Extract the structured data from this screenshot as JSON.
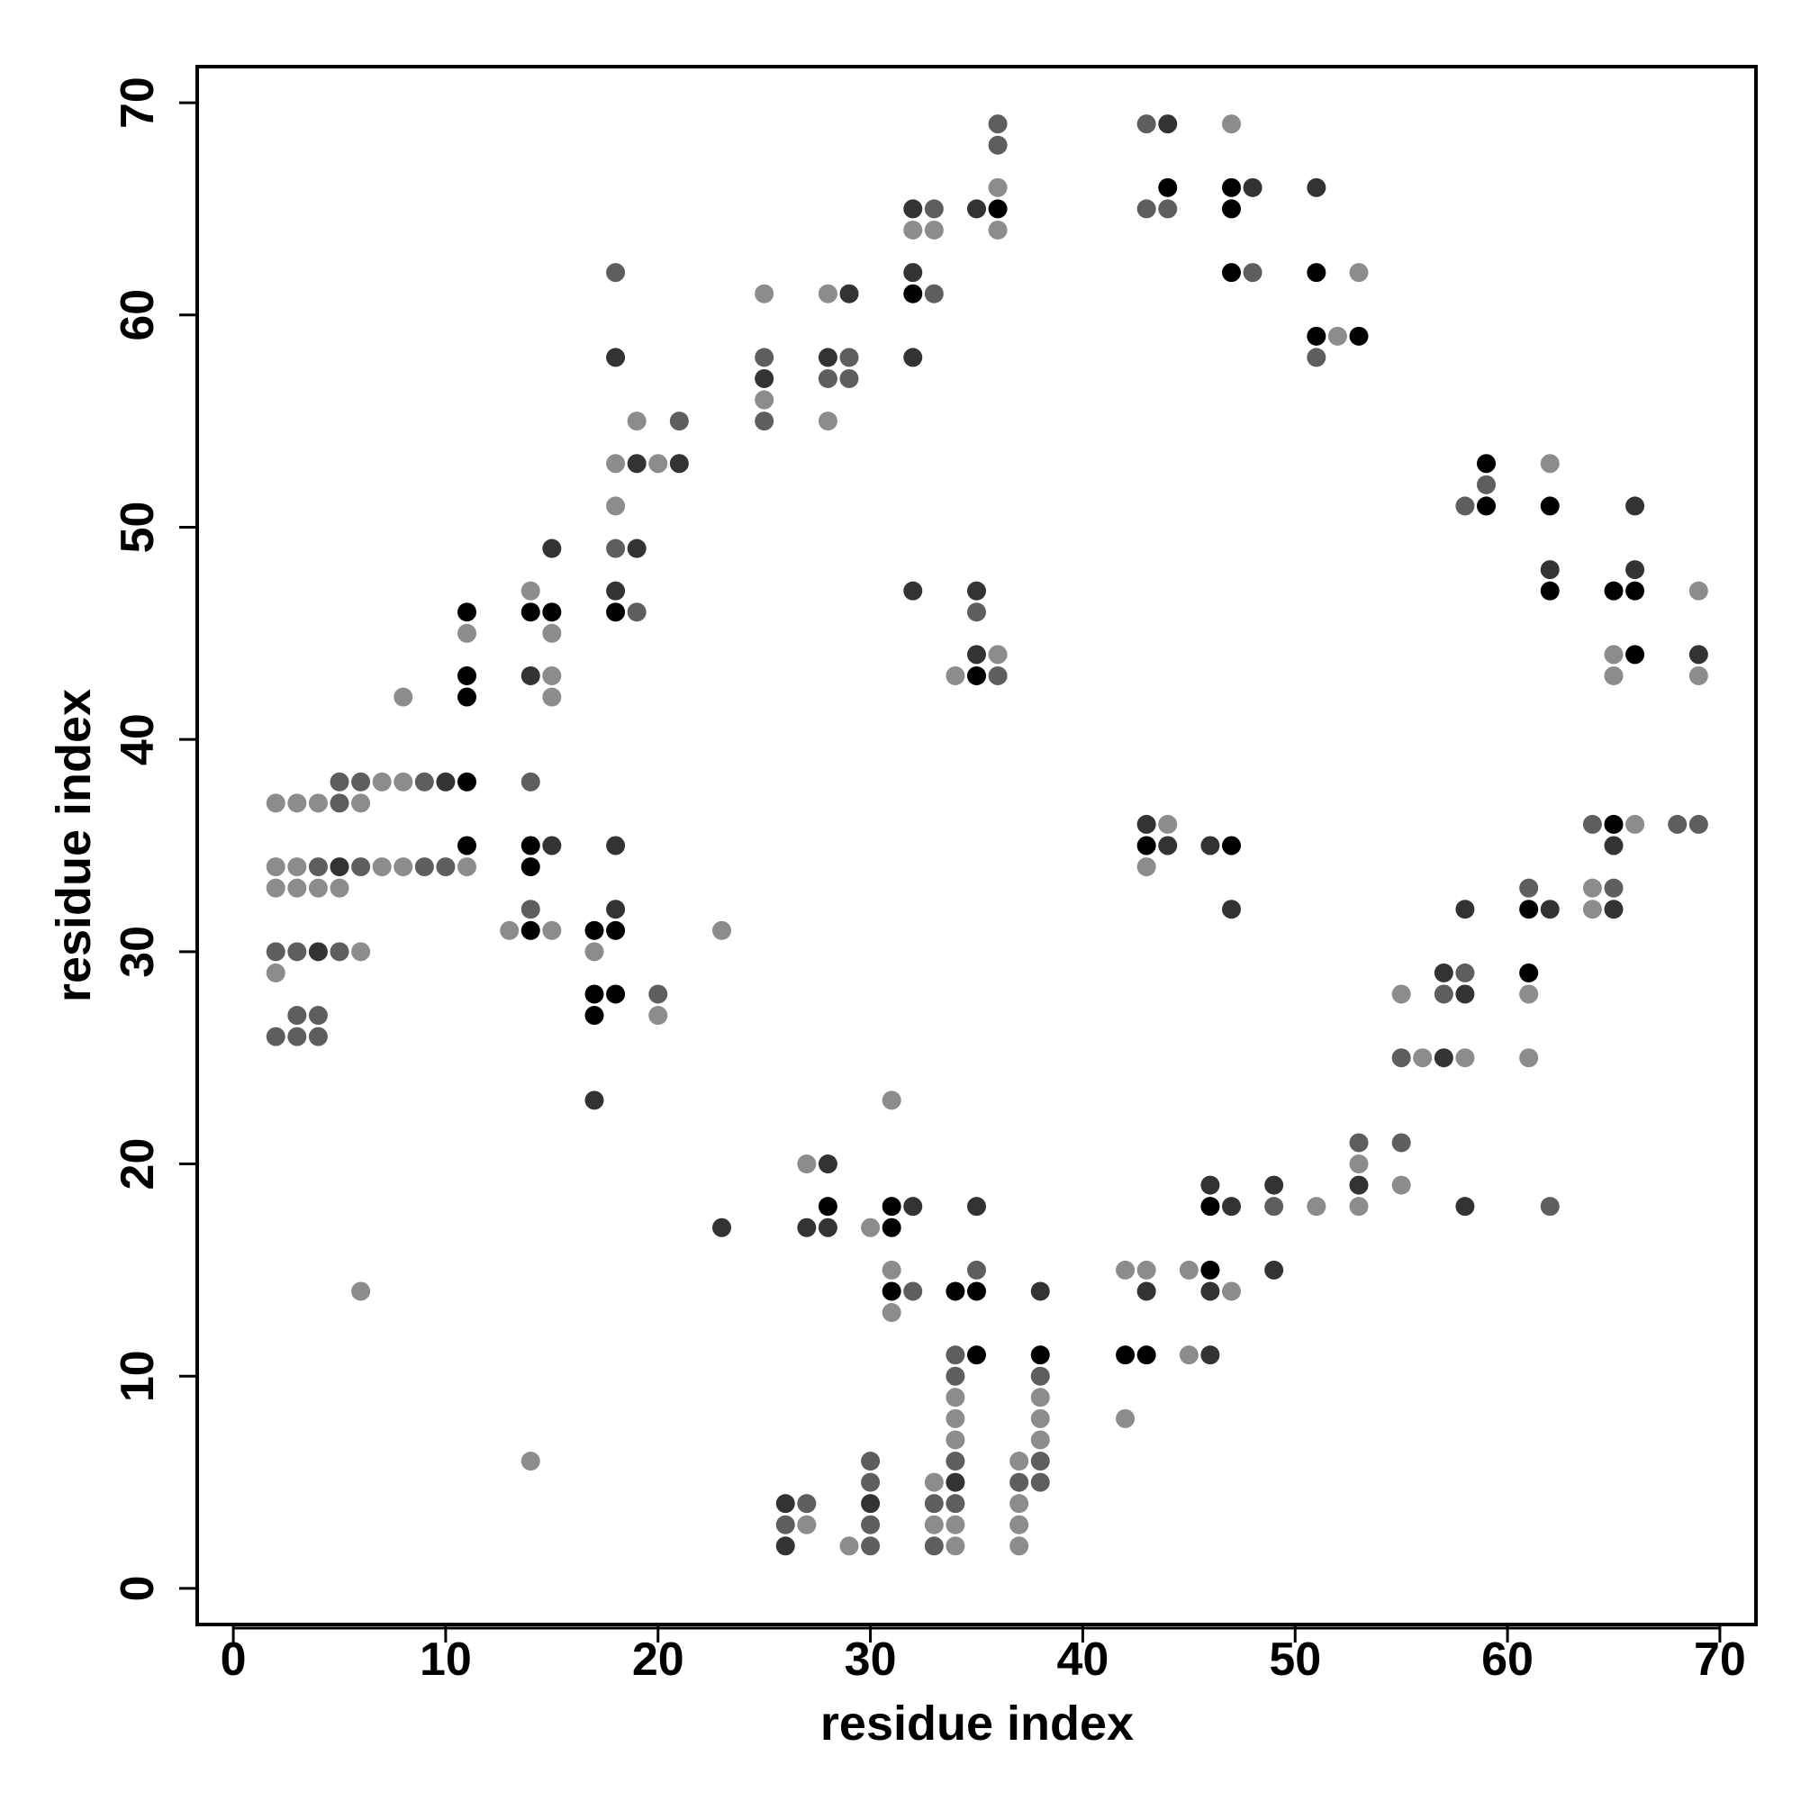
{
  "chart_data": {
    "type": "scatter",
    "xlabel": "residue index",
    "ylabel": "residue index",
    "xlim": [
      -1.7,
      71.7
    ],
    "ylim": [
      -1.7,
      71.7
    ],
    "xticks": [
      0,
      10,
      20,
      30,
      40,
      50,
      60,
      70
    ],
    "yticks": [
      0,
      10,
      20,
      30,
      40,
      50,
      60,
      70
    ],
    "series": [
      {
        "color": "#8c8c8c",
        "x": [
          2,
          2,
          2,
          2,
          3,
          3,
          3,
          4,
          4,
          5,
          6,
          6,
          6,
          7,
          7,
          8,
          8,
          8,
          11,
          11,
          13,
          14,
          14,
          15,
          15,
          15,
          15,
          17,
          18,
          18,
          19,
          20,
          20,
          23,
          25,
          25,
          27,
          27,
          28,
          28,
          29,
          30,
          31,
          31,
          31,
          32,
          33,
          33,
          33,
          34,
          34,
          34,
          34,
          34,
          34,
          36,
          36,
          36,
          37,
          37,
          37,
          37,
          38,
          38,
          38,
          42,
          42,
          43,
          43,
          44,
          45,
          45,
          47,
          47,
          51,
          52,
          53,
          53,
          53,
          55,
          55,
          56,
          58,
          61,
          61,
          62,
          64,
          64,
          65,
          65,
          66,
          69,
          69
        ],
        "values": [
          37,
          34,
          33,
          29,
          37,
          34,
          33,
          37,
          33,
          33,
          37,
          30,
          14,
          38,
          34,
          42,
          38,
          34,
          45,
          34,
          31,
          47,
          6,
          45,
          43,
          42,
          31,
          30,
          53,
          51,
          55,
          53,
          27,
          31,
          61,
          56,
          20,
          3,
          61,
          55,
          2,
          17,
          23,
          15,
          13,
          64,
          64,
          5,
          3,
          43,
          9,
          8,
          7,
          3,
          2,
          66,
          64,
          44,
          6,
          4,
          3,
          2,
          9,
          8,
          7,
          15,
          8,
          34,
          15,
          36,
          15,
          11,
          69,
          14,
          18,
          59,
          62,
          20,
          18,
          28,
          19,
          25,
          25,
          28,
          25,
          53,
          33,
          32,
          44,
          43,
          36,
          47,
          43
        ]
      },
      {
        "color": "#5e5e5e",
        "x": [
          2,
          2,
          3,
          3,
          3,
          4,
          4,
          4,
          5,
          5,
          5,
          6,
          6,
          9,
          9,
          10,
          14,
          14,
          18,
          18,
          19,
          20,
          21,
          25,
          25,
          26,
          27,
          28,
          29,
          29,
          30,
          30,
          30,
          30,
          32,
          33,
          33,
          33,
          33,
          34,
          34,
          34,
          34,
          35,
          35,
          36,
          36,
          36,
          37,
          38,
          38,
          38,
          43,
          43,
          44,
          48,
          49,
          51,
          53,
          55,
          55,
          57,
          58,
          58,
          59,
          61,
          62,
          64,
          65,
          68,
          69
        ],
        "values": [
          30,
          26,
          30,
          27,
          26,
          34,
          27,
          26,
          38,
          37,
          30,
          38,
          34,
          38,
          34,
          34,
          38,
          32,
          62,
          49,
          46,
          28,
          55,
          58,
          55,
          3,
          4,
          57,
          58,
          57,
          6,
          5,
          3,
          2,
          14,
          65,
          61,
          4,
          2,
          11,
          10,
          6,
          4,
          46,
          15,
          69,
          68,
          43,
          5,
          10,
          6,
          5,
          69,
          65,
          65,
          62,
          18,
          58,
          21,
          25,
          21,
          28,
          51,
          29,
          52,
          33,
          18,
          36,
          33,
          36,
          36
        ]
      },
      {
        "color": "#333333",
        "x": [
          4,
          5,
          10,
          14,
          15,
          15,
          17,
          18,
          18,
          18,
          18,
          19,
          19,
          21,
          23,
          25,
          26,
          26,
          27,
          28,
          28,
          28,
          29,
          30,
          32,
          32,
          32,
          32,
          32,
          34,
          35,
          35,
          35,
          35,
          38,
          43,
          43,
          44,
          44,
          46,
          46,
          46,
          46,
          47,
          47,
          48,
          49,
          49,
          51,
          53,
          57,
          57,
          58,
          58,
          58,
          62,
          62,
          65,
          65,
          66,
          66,
          69
        ],
        "values": [
          30,
          34,
          38,
          43,
          49,
          35,
          23,
          58,
          47,
          35,
          32,
          53,
          49,
          53,
          17,
          57,
          4,
          2,
          17,
          58,
          20,
          17,
          61,
          4,
          65,
          62,
          58,
          47,
          18,
          5,
          65,
          47,
          44,
          18,
          14,
          36,
          14,
          69,
          35,
          35,
          19,
          14,
          11,
          32,
          18,
          66,
          19,
          15,
          66,
          19,
          29,
          25,
          32,
          28,
          18,
          48,
          32,
          35,
          32,
          51,
          48,
          44
        ]
      },
      {
        "color": "#000000",
        "x": [
          11,
          11,
          11,
          11,
          11,
          14,
          14,
          14,
          14,
          15,
          17,
          17,
          17,
          18,
          18,
          18,
          28,
          31,
          31,
          31,
          32,
          34,
          35,
          35,
          35,
          36,
          38,
          42,
          43,
          43,
          44,
          46,
          46,
          47,
          47,
          47,
          47,
          51,
          51,
          53,
          59,
          59,
          61,
          61,
          62,
          62,
          65,
          65,
          66,
          66
        ],
        "values": [
          46,
          43,
          42,
          38,
          35,
          46,
          35,
          34,
          31,
          46,
          31,
          28,
          27,
          46,
          31,
          28,
          18,
          18,
          17,
          14,
          61,
          14,
          43,
          14,
          11,
          65,
          11,
          11,
          35,
          11,
          66,
          18,
          15,
          66,
          65,
          62,
          35,
          62,
          59,
          59,
          53,
          51,
          32,
          29,
          51,
          47,
          47,
          36,
          47,
          44
        ]
      }
    ]
  }
}
